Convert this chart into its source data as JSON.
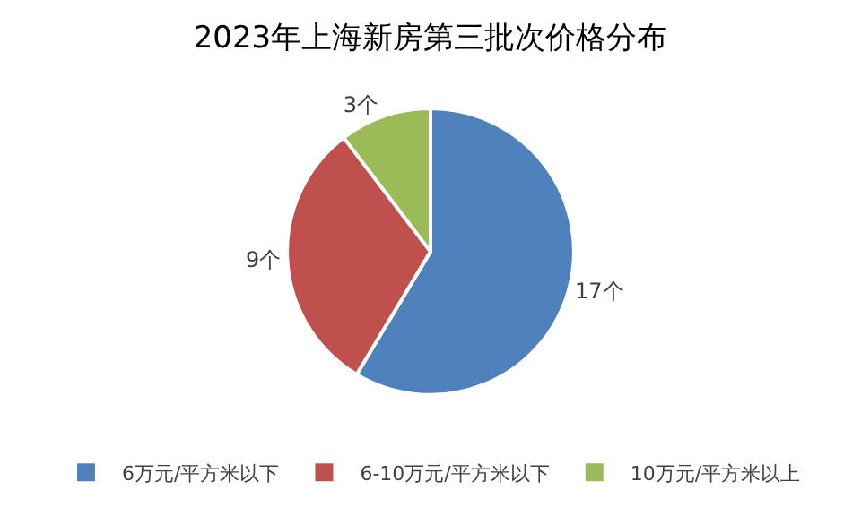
{
  "chart_data": {
    "type": "pie",
    "title": "2023年上海新房第三批次价格分布",
    "categories": [
      "6万元/平方米以下",
      "6-10万元/平方米以下",
      "10万元/平方米以上"
    ],
    "values": [
      17,
      9,
      3
    ],
    "value_labels": [
      "17个",
      "9个",
      "3个"
    ],
    "colors": [
      "#4f81bd",
      "#c0504d",
      "#9bbb59"
    ],
    "legend": "bottom"
  }
}
